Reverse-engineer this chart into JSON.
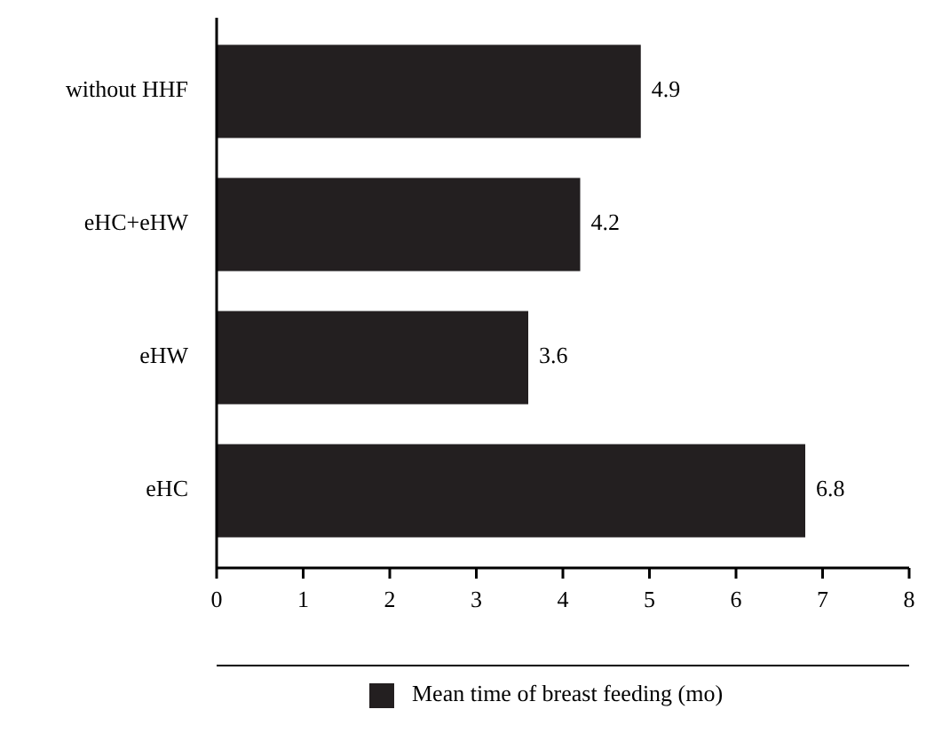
{
  "chart_data": {
    "type": "bar",
    "orientation": "horizontal",
    "categories": [
      "without HHF",
      "eHC+eHW",
      "eHW",
      "eHC"
    ],
    "series": [
      {
        "name": "Mean time of breast feeding (mo)",
        "color": "#231f20",
        "values": [
          4.9,
          4.2,
          3.6,
          6.8
        ]
      }
    ],
    "xlim": [
      0,
      8
    ],
    "xticks": [
      0,
      1,
      2,
      3,
      4,
      5,
      6,
      7,
      8
    ],
    "data_labels": true,
    "legend": "bottom",
    "grid": false
  }
}
